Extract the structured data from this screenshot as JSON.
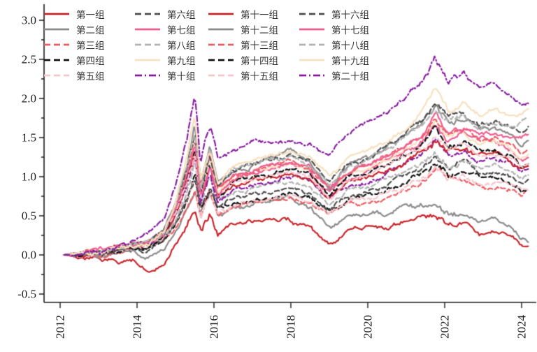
{
  "chart_data": {
    "type": "line",
    "title": "",
    "xlabel": "",
    "ylabel": "",
    "grid": false,
    "legend_position": "upper-left",
    "background": "#ffffff",
    "axis_color": "#1a1a1a",
    "xlim": [
      2011.6,
      2024.4
    ],
    "ylim": [
      -0.5,
      3.0
    ],
    "xticks": [
      2012,
      2014,
      2016,
      2018,
      2020,
      2022,
      2024
    ],
    "xtick_labels": [
      "2012",
      "2014",
      "2016",
      "2018",
      "2020",
      "2022",
      "2024"
    ],
    "yticks": [
      -0.5,
      0.0,
      0.5,
      1.0,
      1.5,
      2.0,
      2.5,
      3.0
    ],
    "ytick_labels": [
      "-0.5",
      "0.0",
      "0.5",
      "1.0",
      "1.5",
      "2.0",
      "2.5",
      "3.0"
    ],
    "y_minor_tick_step": 0.25,
    "x": [
      2012.1,
      2012.7,
      2013.1,
      2013.5,
      2013.9,
      2014.3,
      2014.7,
      2015.0,
      2015.3,
      2015.5,
      2015.65,
      2015.9,
      2016.1,
      2016.5,
      2017.0,
      2017.5,
      2018.0,
      2018.5,
      2019.0,
      2019.5,
      2020.0,
      2020.5,
      2021.0,
      2021.4,
      2021.75,
      2022.1,
      2022.5,
      2022.9,
      2023.3,
      2023.7,
      2024.0,
      2024.2
    ],
    "series": [
      {
        "name": "第一组",
        "color": "#c9252b",
        "dash": "solid",
        "values": [
          0,
          -0.02,
          -0.05,
          -0.12,
          -0.1,
          -0.2,
          -0.15,
          0.1,
          0.35,
          0.55,
          0.25,
          0.5,
          0.3,
          0.42,
          0.45,
          0.48,
          0.45,
          0.35,
          0.12,
          0.3,
          0.35,
          0.3,
          0.45,
          0.5,
          0.52,
          0.38,
          0.42,
          0.25,
          0.32,
          0.28,
          0.12,
          0.1
        ]
      },
      {
        "name": "第二组",
        "color": "#8c8c8c",
        "dash": "solid",
        "values": [
          0,
          0.0,
          -0.02,
          0.02,
          0.0,
          -0.05,
          0.05,
          0.3,
          0.6,
          0.85,
          0.45,
          0.75,
          0.5,
          0.6,
          0.65,
          0.7,
          0.72,
          0.6,
          0.32,
          0.5,
          0.55,
          0.52,
          0.6,
          0.62,
          0.6,
          0.5,
          0.55,
          0.42,
          0.48,
          0.42,
          0.25,
          0.2
        ]
      },
      {
        "name": "第三组",
        "color": "#ed5e63",
        "dash": "dashed",
        "values": [
          0,
          0.02,
          0.02,
          0.06,
          0.08,
          0.1,
          0.18,
          0.36,
          0.64,
          0.88,
          0.48,
          0.76,
          0.5,
          0.6,
          0.64,
          0.68,
          0.72,
          0.66,
          0.5,
          0.64,
          0.68,
          0.76,
          0.84,
          0.92,
          1.04,
          0.92,
          0.96,
          0.88,
          0.9,
          0.84,
          0.76,
          0.8
        ]
      },
      {
        "name": "第四组",
        "color": "#141414",
        "dash": "dashed",
        "values": [
          0,
          0.02,
          0.03,
          0.07,
          0.09,
          0.11,
          0.19,
          0.4,
          0.7,
          0.97,
          0.53,
          0.84,
          0.55,
          0.66,
          0.7,
          0.75,
          0.79,
          0.73,
          0.55,
          0.7,
          0.75,
          0.84,
          0.92,
          1.01,
          1.14,
          1.01,
          1.06,
          0.97,
          0.99,
          0.92,
          0.84,
          0.88
        ]
      },
      {
        "name": "第五组",
        "color": "#f6c6cd",
        "dash": "dashed",
        "values": [
          0,
          0.02,
          0.03,
          0.07,
          0.09,
          0.1,
          0.19,
          0.38,
          0.68,
          0.94,
          0.51,
          0.81,
          0.53,
          0.64,
          0.68,
          0.72,
          0.77,
          0.71,
          0.54,
          0.68,
          0.72,
          0.81,
          0.89,
          0.98,
          1.11,
          0.98,
          1.02,
          0.94,
          0.95,
          0.89,
          0.81,
          0.85
        ]
      },
      {
        "name": "第六组",
        "color": "#4f4f4f",
        "dash": "dashed",
        "values": [
          0,
          0.02,
          0.03,
          0.08,
          0.1,
          0.11,
          0.21,
          0.43,
          0.76,
          1.05,
          0.57,
          0.9,
          0.59,
          0.71,
          0.76,
          0.81,
          0.86,
          0.79,
          0.6,
          0.76,
          0.81,
          0.9,
          1.0,
          1.09,
          1.24,
          1.09,
          1.14,
          1.05,
          1.06,
          1.0,
          0.9,
          0.95
        ]
      },
      {
        "name": "第七组",
        "color": "#ef5f92",
        "dash": "solid",
        "values": [
          0,
          0.03,
          0.04,
          0.1,
          0.13,
          0.15,
          0.28,
          0.58,
          1.02,
          1.41,
          0.77,
          1.22,
          0.79,
          0.96,
          1.02,
          1.09,
          1.15,
          1.06,
          0.81,
          1.02,
          1.09,
          1.22,
          1.34,
          1.47,
          1.66,
          1.47,
          1.54,
          1.41,
          1.43,
          1.34,
          1.22,
          1.28
        ]
      },
      {
        "name": "第八组",
        "color": "#b3b3b3",
        "dash": "dashed",
        "values": [
          0,
          0.02,
          0.03,
          0.08,
          0.1,
          0.12,
          0.22,
          0.46,
          0.82,
          1.12,
          0.61,
          0.97,
          0.63,
          0.77,
          0.82,
          0.87,
          0.92,
          0.85,
          0.64,
          0.82,
          0.87,
          0.97,
          1.07,
          1.17,
          1.33,
          1.17,
          1.22,
          1.12,
          1.14,
          1.07,
          0.97,
          1.02
        ]
      },
      {
        "name": "第九组",
        "color": "#f8e1c0",
        "dash": "solid",
        "values": [
          0,
          0.03,
          0.04,
          0.1,
          0.13,
          0.16,
          0.29,
          0.59,
          1.04,
          1.43,
          0.78,
          1.24,
          0.81,
          0.98,
          1.04,
          1.11,
          1.17,
          1.08,
          0.82,
          1.04,
          1.11,
          1.24,
          1.37,
          1.5,
          1.69,
          1.5,
          1.56,
          1.43,
          1.46,
          1.37,
          1.24,
          1.3
        ]
      },
      {
        "name": "第十组",
        "color": "#871fa0",
        "dash": "dashdot",
        "values": [
          0,
          0.02,
          0.03,
          0.09,
          0.11,
          0.13,
          0.25,
          0.5,
          0.9,
          1.23,
          0.67,
          1.06,
          0.69,
          0.84,
          0.9,
          0.95,
          1.01,
          0.93,
          0.71,
          0.9,
          0.95,
          1.06,
          1.18,
          1.29,
          1.46,
          1.29,
          1.34,
          1.23,
          1.25,
          1.18,
          1.06,
          1.12
        ]
      },
      {
        "name": "第十一组",
        "color": "#c9252b",
        "dash": "solid",
        "values": [
          0,
          0.02,
          0.03,
          0.09,
          0.12,
          0.14,
          0.25,
          0.52,
          0.92,
          1.27,
          0.69,
          1.09,
          0.71,
          0.86,
          0.92,
          0.98,
          1.04,
          0.95,
          0.72,
          0.92,
          0.98,
          1.09,
          1.21,
          1.32,
          1.5,
          1.32,
          1.38,
          1.27,
          1.29,
          1.21,
          1.09,
          1.15
        ]
      },
      {
        "name": "第十二组",
        "color": "#8c8c8c",
        "dash": "solid",
        "values": [
          0,
          0.03,
          0.04,
          0.12,
          0.15,
          0.17,
          0.32,
          0.65,
          1.16,
          1.6,
          0.87,
          1.38,
          0.9,
          1.09,
          1.16,
          1.23,
          1.31,
          1.2,
          0.91,
          1.16,
          1.23,
          1.38,
          1.52,
          1.67,
          1.89,
          1.67,
          1.74,
          1.6,
          1.62,
          1.52,
          1.38,
          1.45
        ]
      },
      {
        "name": "第十三组",
        "color": "#ed5e63",
        "dash": "dashed",
        "values": [
          0,
          0.03,
          0.04,
          0.11,
          0.14,
          0.16,
          0.3,
          0.61,
          1.08,
          1.49,
          0.81,
          1.28,
          0.84,
          1.01,
          1.08,
          1.15,
          1.22,
          1.12,
          0.85,
          1.08,
          1.15,
          1.28,
          1.42,
          1.55,
          1.76,
          1.55,
          1.62,
          1.49,
          1.51,
          1.42,
          1.28,
          1.35
        ]
      },
      {
        "name": "第十四组",
        "color": "#141414",
        "dash": "dashed",
        "values": [
          0,
          0.02,
          0.04,
          0.1,
          0.12,
          0.15,
          0.27,
          0.55,
          0.98,
          1.34,
          0.73,
          1.16,
          0.76,
          0.92,
          0.98,
          1.04,
          1.1,
          1.01,
          0.77,
          0.98,
          1.04,
          1.16,
          1.28,
          1.4,
          1.59,
          1.4,
          1.46,
          1.34,
          1.37,
          1.28,
          1.16,
          1.22
        ]
      },
      {
        "name": "第十五组",
        "color": "#f6c6cd",
        "dash": "dashed",
        "values": [
          0,
          0.02,
          0.04,
          0.09,
          0.12,
          0.14,
          0.26,
          0.53,
          0.94,
          1.3,
          0.71,
          1.12,
          0.73,
          0.89,
          0.94,
          1.0,
          1.06,
          0.98,
          0.74,
          0.94,
          1.0,
          1.12,
          1.24,
          1.36,
          1.53,
          1.36,
          1.42,
          1.3,
          1.32,
          1.24,
          1.12,
          1.18
        ]
      },
      {
        "name": "第十六组",
        "color": "#4f4f4f",
        "dash": "dashed",
        "values": [
          0,
          0.03,
          0.04,
          0.1,
          0.13,
          0.16,
          0.31,
          0.64,
          1.15,
          1.58,
          0.87,
          1.33,
          0.9,
          1.08,
          1.15,
          1.22,
          1.29,
          1.19,
          0.92,
          1.16,
          1.23,
          1.38,
          1.53,
          1.7,
          1.95,
          1.73,
          1.8,
          1.67,
          1.72,
          1.65,
          1.62,
          1.7
        ]
      },
      {
        "name": "第十七组",
        "color": "#ef5f92",
        "dash": "solid",
        "values": [
          0,
          0.02,
          0.04,
          0.09,
          0.12,
          0.14,
          0.28,
          0.58,
          1.05,
          1.45,
          0.8,
          1.22,
          0.82,
          0.98,
          1.05,
          1.12,
          1.18,
          1.09,
          0.84,
          1.07,
          1.13,
          1.27,
          1.4,
          1.55,
          1.77,
          1.58,
          1.65,
          1.52,
          1.57,
          1.5,
          1.48,
          1.55
        ]
      },
      {
        "name": "第十八组",
        "color": "#b3b3b3",
        "dash": "dashed",
        "values": [
          0,
          0.02,
          0.04,
          0.1,
          0.12,
          0.15,
          0.3,
          0.62,
          1.12,
          1.55,
          0.85,
          1.3,
          0.88,
          1.05,
          1.12,
          1.2,
          1.26,
          1.16,
          0.9,
          1.14,
          1.2,
          1.35,
          1.5,
          1.65,
          1.9,
          1.7,
          1.78,
          1.65,
          1.7,
          1.65,
          1.68,
          1.75
        ]
      },
      {
        "name": "第十九组",
        "color": "#f8e1c0",
        "dash": "solid",
        "values": [
          0,
          0.02,
          0.04,
          0.1,
          0.13,
          0.18,
          0.33,
          0.7,
          1.3,
          1.74,
          0.95,
          1.4,
          0.95,
          1.15,
          1.22,
          1.3,
          1.35,
          1.28,
          1.0,
          1.25,
          1.32,
          1.45,
          1.6,
          1.8,
          2.13,
          1.85,
          1.95,
          1.8,
          1.85,
          1.78,
          1.8,
          1.85
        ]
      },
      {
        "name": "第二十组",
        "color": "#871fa0",
        "dash": "dashdot",
        "values": [
          0,
          0.03,
          0.05,
          0.12,
          0.15,
          0.25,
          0.45,
          0.85,
          1.5,
          2.0,
          1.1,
          1.55,
          1.15,
          1.3,
          1.4,
          1.45,
          1.5,
          1.42,
          1.28,
          1.6,
          1.75,
          1.85,
          2.0,
          2.2,
          2.53,
          2.2,
          2.3,
          2.1,
          2.15,
          2.05,
          1.9,
          1.95
        ]
      }
    ]
  }
}
